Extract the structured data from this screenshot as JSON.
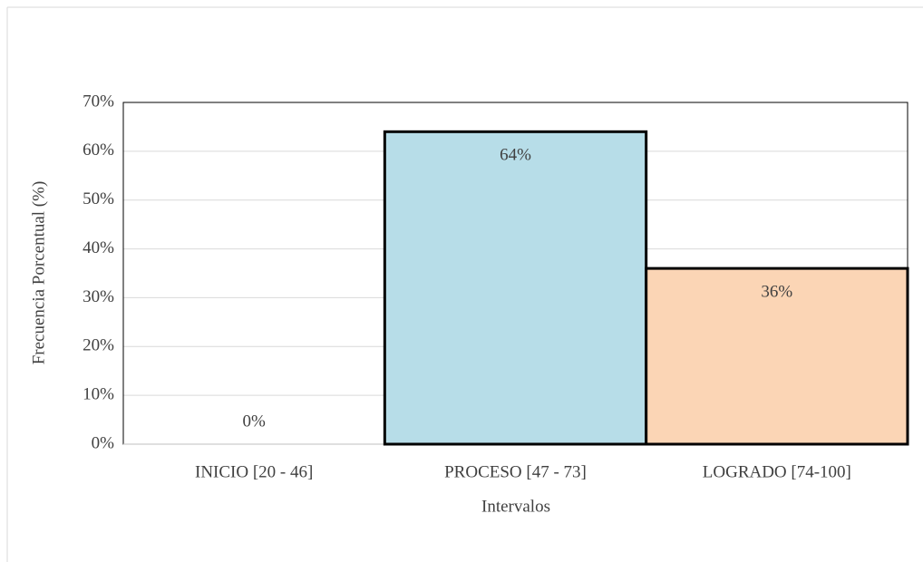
{
  "chart_data": {
    "type": "bar",
    "categories": [
      "INICIO [20 - 46]",
      "PROCESO [47 - 73]",
      "LOGRADO [74-100]"
    ],
    "values": [
      0,
      64,
      36
    ],
    "value_labels": [
      "0%",
      "64%",
      "36%"
    ],
    "colors": [
      "#b7dde8",
      "#b7dde8",
      "#fbd5b5"
    ],
    "x_label": "Intervalos",
    "y_label": "Frecuencia Porcentual (%)",
    "ylim": [
      0,
      70
    ],
    "yticks": [
      {
        "value": 0,
        "label": "0%"
      },
      {
        "value": 10,
        "label": "10%"
      },
      {
        "value": 20,
        "label": "20%"
      },
      {
        "value": 30,
        "label": "30%"
      },
      {
        "value": 40,
        "label": "40%"
      },
      {
        "value": 50,
        "label": "50%"
      },
      {
        "value": 60,
        "label": "60%"
      },
      {
        "value": 70,
        "label": "70%"
      }
    ],
    "grid": true
  }
}
